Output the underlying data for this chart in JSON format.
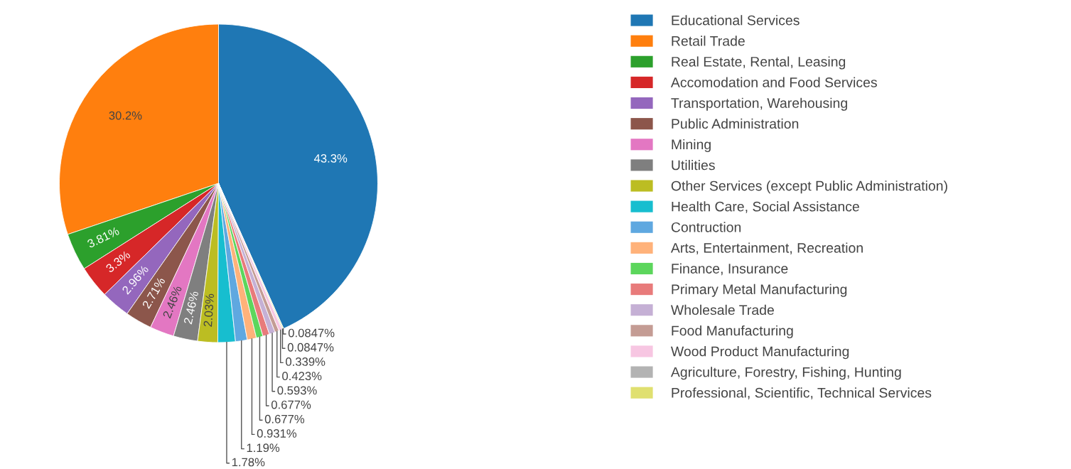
{
  "chart_data": {
    "type": "pie",
    "categories": [
      "Educational Services",
      "Retail Trade",
      "Real Estate, Rental, Leasing",
      "Accomodation and Food Services",
      "Transportation, Warehousing",
      "Public Administration",
      "Mining",
      "Utilities",
      "Other Services (except Public Administration)",
      "Health Care, Social Assistance",
      "Contruction",
      "Arts, Entertainment, Recreation",
      "Finance, Insurance",
      "Primary Metal Manufacturing",
      "Wholesale Trade",
      "Food Manufacturing",
      "Wood Product Manufacturing",
      "Agriculture, Forestry, Fishing, Hunting",
      "Professional, Scientific, Technical Services"
    ],
    "values": [
      43.3,
      30.2,
      3.81,
      3.3,
      2.96,
      2.71,
      2.46,
      2.46,
      2.03,
      1.78,
      1.19,
      0.931,
      0.677,
      0.677,
      0.593,
      0.423,
      0.339,
      0.0847,
      0.0847
    ],
    "value_labels": [
      "43.3%",
      "30.2%",
      "3.81%",
      "3.3%",
      "2.96%",
      "2.71%",
      "2.46%",
      "2.46%",
      "2.03%",
      "1.78%",
      "1.19%",
      "0.931%",
      "0.677%",
      "0.677%",
      "0.593%",
      "0.423%",
      "0.339%",
      "0.0847%",
      "0.0847%"
    ],
    "colors": [
      "#1f77b4",
      "#ff7f0e",
      "#2ca02c",
      "#d62728",
      "#9467bd",
      "#8c564b",
      "#e377c2",
      "#7f7f7f",
      "#bcbd22",
      "#17becf",
      "#5fa8e0",
      "#ffb27a",
      "#5cd65c",
      "#e87b7b",
      "#c5b0d5",
      "#c49c94",
      "#f7c6e2",
      "#b3b3b3",
      "#e0e070"
    ],
    "legend": "right"
  }
}
